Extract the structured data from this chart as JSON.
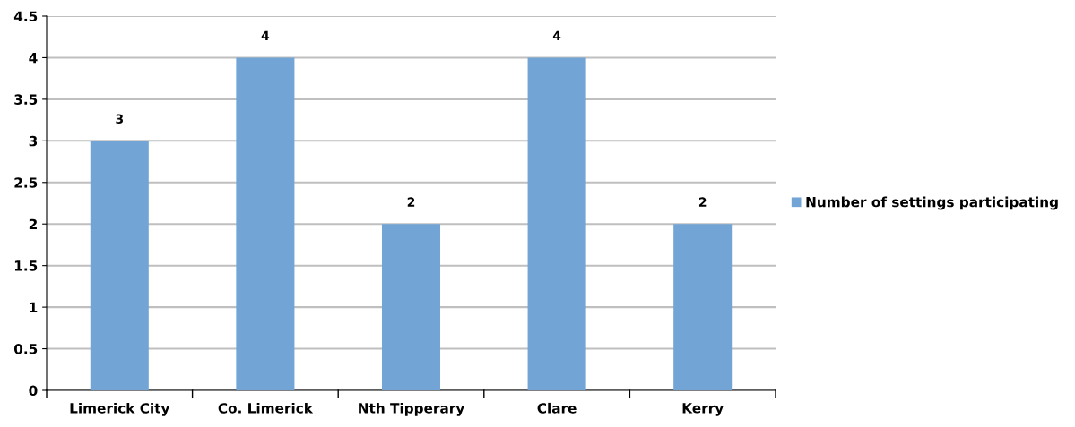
{
  "chart_data": {
    "type": "bar",
    "categories": [
      "Limerick City",
      "Co. Limerick",
      "Nth Tipperary",
      "Clare",
      "Kerry"
    ],
    "series": [
      {
        "name": "Number of settings participating",
        "color": "#72a4d6",
        "values": [
          3,
          4,
          2,
          4,
          2
        ]
      }
    ],
    "ylim": [
      0,
      4.5
    ],
    "yticks": [
      0,
      0.5,
      1,
      1.5,
      2,
      2.5,
      3,
      3.5,
      4,
      4.5
    ],
    "grid": "y",
    "legend": "right",
    "data_labels": true
  }
}
